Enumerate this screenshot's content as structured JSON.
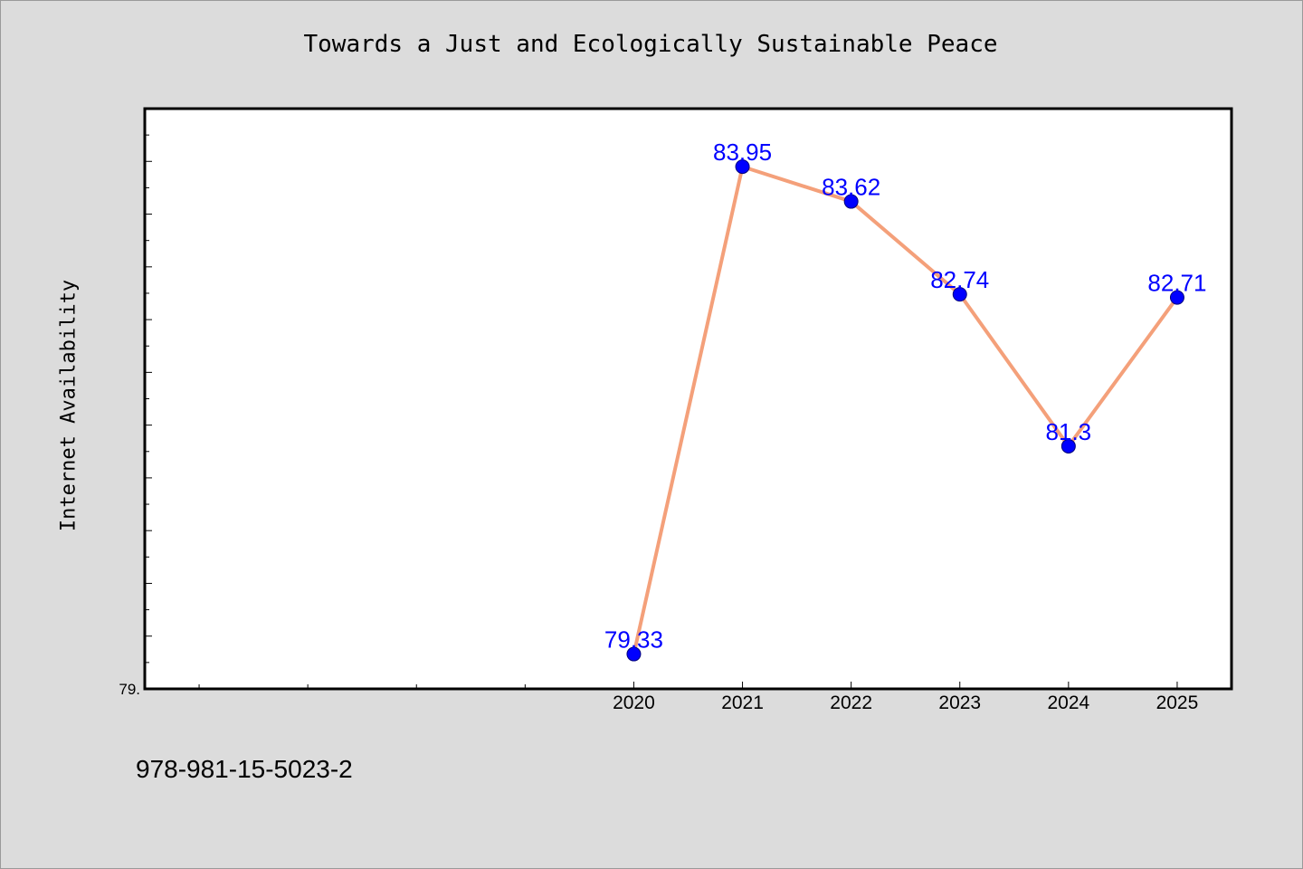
{
  "chart_data": {
    "type": "line",
    "title": "Towards a Just and Ecologically Sustainable Peace",
    "ylabel": "Internet Availability",
    "xlabel": "",
    "x": [
      2020,
      2021,
      2022,
      2023,
      2024,
      2025
    ],
    "x_tick_labels": [
      "2020",
      "2021",
      "2022",
      "2023",
      "2024",
      "2025"
    ],
    "series": [
      {
        "values": [
          79.33,
          83.95,
          83.62,
          82.74,
          81.3,
          82.71
        ],
        "data_labels": [
          "79.33",
          "83.95",
          "83.62",
          "82.74",
          "81.3",
          "82.71"
        ],
        "color": "#f4a07a",
        "marker_color": "#0000ff"
      }
    ],
    "xlim": [
      2015.5,
      2025.5
    ],
    "ylim": [
      79.0,
      84.5
    ],
    "y_tick_label": "79.",
    "data_label_color": "#0000ff",
    "grid": false,
    "background": "#ffffff",
    "page_background": "#dcdcdc"
  },
  "footer": {
    "isbn": "978-981-15-5023-2"
  }
}
